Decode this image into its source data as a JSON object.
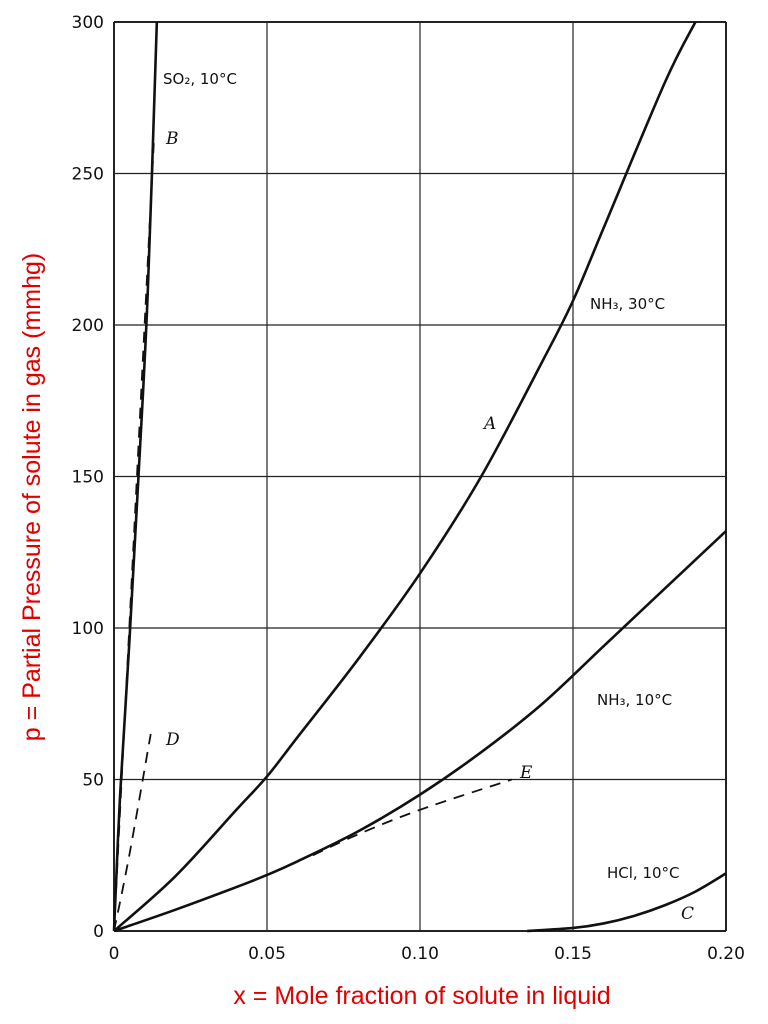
{
  "chart_data": {
    "type": "line",
    "xlabel": "x = Mole fraction of solute in liquid",
    "ylabel": "p = Partial Pressure of solute in gas (mmhg)",
    "xlim": [
      0,
      0.2
    ],
    "ylim": [
      0,
      300
    ],
    "x_ticks": [
      "0",
      "0.05",
      "0.10",
      "0.15",
      "0.20"
    ],
    "y_ticks": [
      "0",
      "50",
      "100",
      "150",
      "200",
      "250",
      "300"
    ],
    "grid": true,
    "colors": {
      "curves": "#111111",
      "axis_titles": "#e00000",
      "grid": "#222222"
    },
    "series": [
      {
        "name": "SO₂, 10°C",
        "letter": "B",
        "style": "solid",
        "x": [
          0,
          0.002,
          0.005,
          0.008,
          0.011,
          0.014
        ],
        "y": [
          0,
          45,
          95,
          150,
          210,
          300
        ]
      },
      {
        "name": "",
        "letter": "",
        "style": "dashed",
        "x": [
          0,
          0.006,
          0.013
        ],
        "y": [
          0,
          120,
          260
        ]
      },
      {
        "name": "NH₃, 30°C",
        "letter": "A",
        "style": "solid",
        "x": [
          0,
          0.02,
          0.04,
          0.05,
          0.06,
          0.08,
          0.1,
          0.12,
          0.14,
          0.15,
          0.16,
          0.18,
          0.19
        ],
        "y": [
          0,
          18,
          40,
          51,
          64,
          90,
          118,
          150,
          188,
          208,
          232,
          280,
          300
        ]
      },
      {
        "name": "",
        "letter": "D",
        "style": "dashed",
        "x": [
          0,
          0.005,
          0.012
        ],
        "y": [
          0,
          25,
          65
        ]
      },
      {
        "name": "NH₃, 10°C",
        "letter": "",
        "style": "solid",
        "x": [
          0,
          0.02,
          0.04,
          0.05,
          0.06,
          0.08,
          0.1,
          0.12,
          0.14,
          0.16,
          0.18,
          0.2
        ],
        "y": [
          0,
          7,
          14.5,
          18.5,
          23,
          33,
          45,
          59,
          75,
          94,
          113,
          132
        ]
      },
      {
        "name": "",
        "letter": "E",
        "style": "dashed",
        "x": [
          0.065,
          0.08,
          0.1,
          0.13
        ],
        "y": [
          25,
          32,
          40,
          50
        ]
      },
      {
        "name": "HCl, 10°C",
        "letter": "C",
        "style": "solid",
        "x": [
          0.135,
          0.15,
          0.16,
          0.17,
          0.18,
          0.19,
          0.2
        ],
        "y": [
          0,
          1,
          2.5,
          5,
          8.5,
          13,
          19
        ]
      }
    ]
  }
}
